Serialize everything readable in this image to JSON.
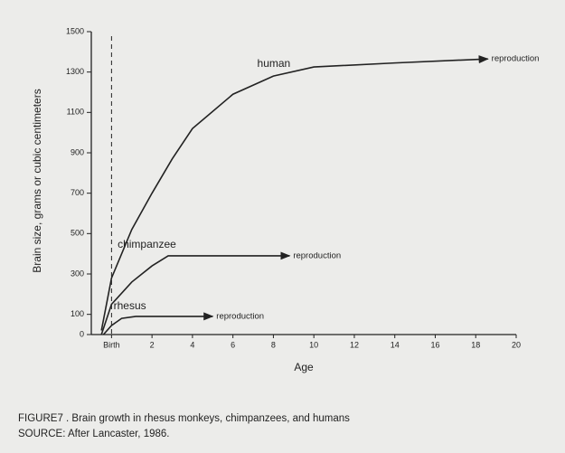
{
  "chart_data": {
    "type": "line",
    "x_label": "Age",
    "y_label": "Brain size, grams or cubic centimeters",
    "xlim": [
      -1,
      20
    ],
    "ylim": [
      0,
      1500
    ],
    "xticks": [
      {
        "value": 0,
        "label": "Birth"
      },
      2,
      4,
      6,
      8,
      10,
      12,
      14,
      16,
      18,
      20
    ],
    "yticks": [
      0,
      100,
      300,
      500,
      700,
      900,
      1100,
      1300,
      1500
    ],
    "series": [
      {
        "name": "human",
        "color": "#222222",
        "end_label": "reproduction",
        "x": [
          -0.5,
          0,
          1,
          2,
          3,
          4,
          6,
          8,
          10,
          14,
          18.6
        ],
        "values": [
          20,
          280,
          520,
          700,
          870,
          1020,
          1190,
          1280,
          1325,
          1345,
          1365
        ]
      },
      {
        "name": "chimpanzee",
        "color": "#222222",
        "end_label": "reproduction",
        "x": [
          -0.5,
          0,
          1,
          2,
          2.8,
          8.8
        ],
        "values": [
          0,
          150,
          260,
          340,
          390,
          390
        ]
      },
      {
        "name": "rhesus",
        "color": "#222222",
        "end_label": "reproduction",
        "x": [
          -0.4,
          0,
          0.5,
          1.2,
          5
        ],
        "values": [
          0,
          45,
          80,
          90,
          90
        ]
      }
    ],
    "caption": [
      "FIGURE7 . Brain growth in rhesus monkeys, chimpanzees, and humans",
      "SOURCE: After Lancaster, 1986."
    ]
  }
}
